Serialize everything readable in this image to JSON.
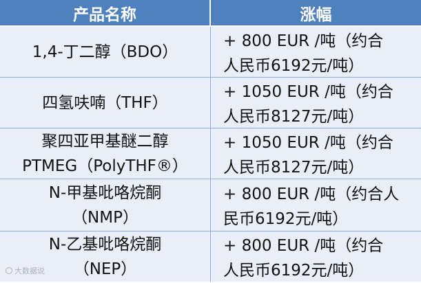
{
  "header": {
    "col1": "产品名称",
    "col2": "涨幅"
  },
  "rows": [
    {
      "name_line1": "1,4-丁二醇（BDO）",
      "name_line2": "",
      "increase": "+ 800 EUR /吨（约合\n人民币6192元/吨）"
    },
    {
      "name_line1": "四氢呋喃（THF）",
      "name_line2": "",
      "increase": "+ 1050 EUR /吨（约合\n人民币8127元/吨）"
    },
    {
      "name_line1": "聚四亚甲基醚二醇",
      "name_line2": "PTMEG（PolyTHF®）",
      "increase": "+ 1050 EUR /吨（约合\n人民币8127元/吨）"
    },
    {
      "name_line1": "N-甲基吡咯烷酮",
      "name_line2": "（NMP）",
      "increase": "+ 800 EUR /吨（约合人\n民币6192元/吨）"
    },
    {
      "name_line1": "N-乙基吡咯烷酮",
      "name_line2": "（NEP）",
      "increase": "+ 800 EUR /吨（约合\n人民币6192元/吨）"
    }
  ],
  "watermark": "大数据说",
  "colors": {
    "header_bg": "#4f81bd",
    "row_bg": "#e9eef7",
    "border": "#8faadc"
  }
}
